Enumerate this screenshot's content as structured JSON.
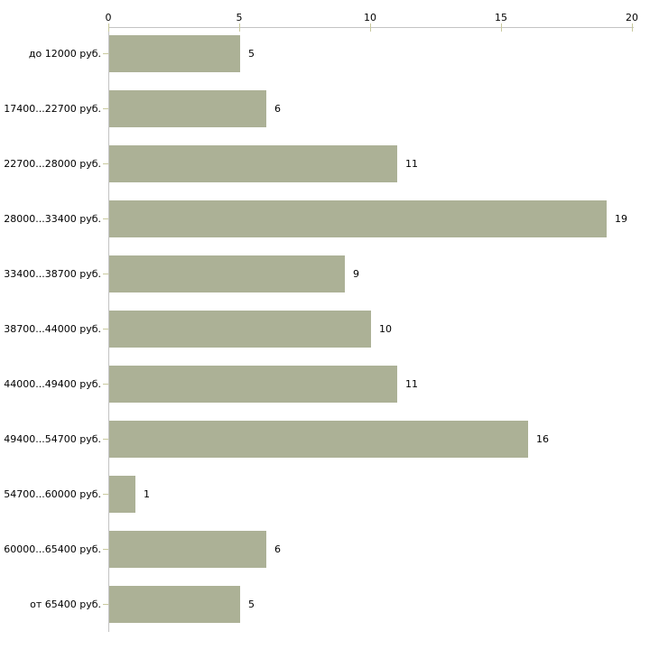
{
  "chart_data": {
    "type": "bar",
    "orientation": "horizontal",
    "title": "",
    "xlabel": "",
    "ylabel": "",
    "categories": [
      "до 12000 руб.",
      "17400...22700 руб.",
      "22700...28000 руб.",
      "28000...33400 руб.",
      "33400...38700 руб.",
      "38700...44000 руб.",
      "44000...49400 руб.",
      "49400...54700 руб.",
      "54700...60000 руб.",
      "60000...65400 руб.",
      "от 65400 руб."
    ],
    "values": [
      5,
      6,
      11,
      19,
      9,
      10,
      11,
      16,
      1,
      6,
      5
    ],
    "value_labels": [
      "5",
      "6",
      "11",
      "19",
      "9",
      "10",
      "11",
      "16",
      "1",
      "6",
      "5"
    ],
    "xlim": [
      0,
      20
    ],
    "x_ticks": [
      "0",
      "5",
      "10",
      "15",
      "20"
    ],
    "grid": false,
    "legend": "none",
    "axis_position": "top",
    "colors": {
      "bar": "#acb196",
      "axis_line": "#c3c3c3",
      "tick": "#c9c99e",
      "text": "#000000",
      "background": "#ffffff"
    }
  }
}
